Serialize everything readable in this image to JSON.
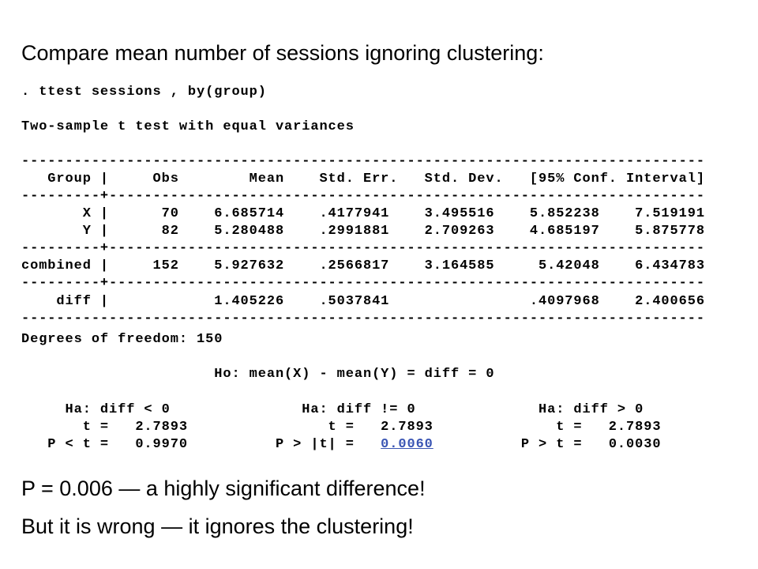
{
  "heading": "Compare mean number of sessions ignoring clustering:",
  "output": {
    "command": ". ttest sessions , by(group)",
    "test_title": "Two-sample t test with equal variances",
    "table_rule": "------------------------------------------------------------------------------",
    "header": "   Group |     Obs        Mean    Std. Err.   Std. Dev.   [95% Conf. Interval]",
    "row_rule": "---------+--------------------------------------------------------------------",
    "rows": [
      "       X |      70    6.685714    .4177941    3.495516    5.852238    7.519191",
      "       Y |      82    5.280488    .2991881    2.709263    4.685197    5.875778",
      "combined |     152    5.927632    .2566817    3.164585     5.42048    6.434783",
      "    diff |            1.405226    .5037841                .4097968    2.400656"
    ],
    "degrees_of_freedom": "Degrees of freedom: 150",
    "null_hypothesis": "                      Ho: mean(X) - mean(Y) = diff = 0",
    "alternatives": "     Ha: diff < 0               Ha: diff != 0              Ha: diff > 0",
    "t_values": "       t =   2.7893                t =   2.7893              t =   2.7893",
    "p_before": "   P < t =   0.9970          P > |t| =   ",
    "p_link": "0.0060",
    "p_after": "          P > t =   0.0030"
  },
  "conclusions": [
    "P = 0.006 — a highly significant difference!",
    "But it is wrong — it ignores the clustering!"
  ]
}
